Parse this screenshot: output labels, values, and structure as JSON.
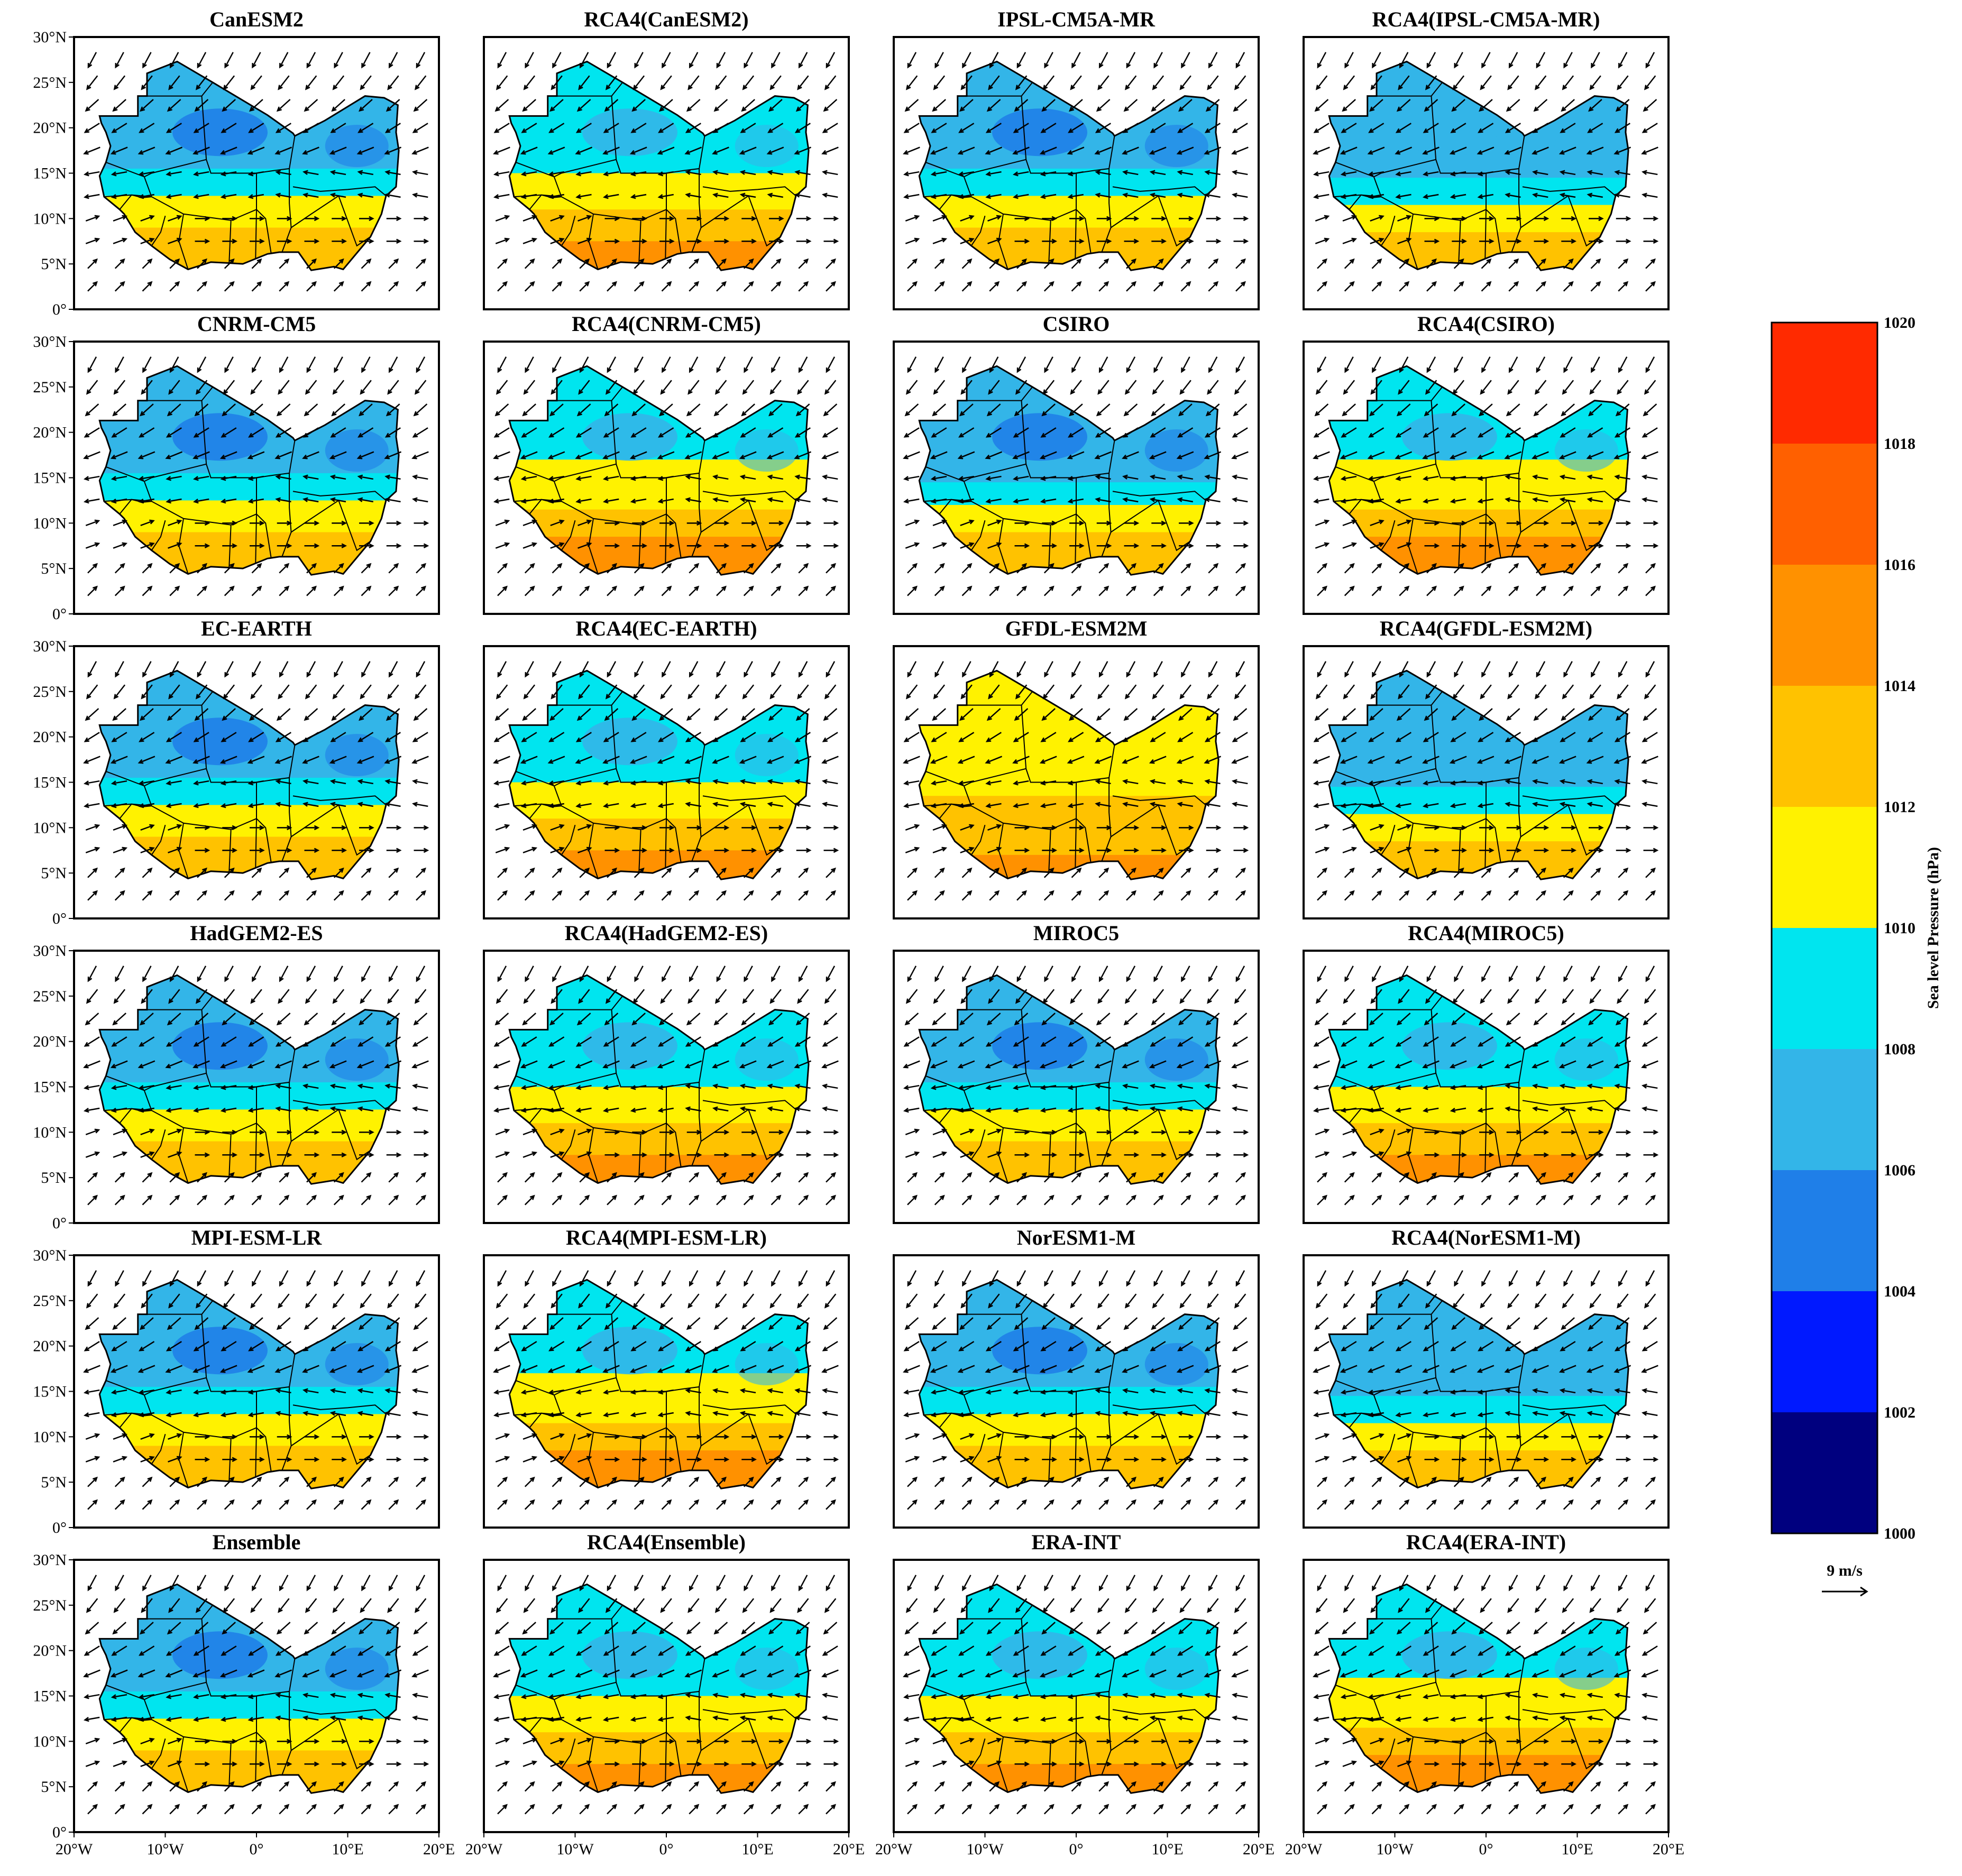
{
  "figure": {
    "type": "map-grid",
    "rows": 6,
    "cols": 4,
    "panels": [
      {
        "title": "CanESM2",
        "pattern": "gcm"
      },
      {
        "title": "RCA4(CanESM2)",
        "pattern": "rca"
      },
      {
        "title": "IPSL-CM5A-MR",
        "pattern": "gcm"
      },
      {
        "title": "RCA4(IPSL-CM5A-MR)",
        "pattern": "rca_low"
      },
      {
        "title": "CNRM-CM5",
        "pattern": "gcm"
      },
      {
        "title": "RCA4(CNRM-CM5)",
        "pattern": "rca_high"
      },
      {
        "title": "CSIRO",
        "pattern": "gcm_low"
      },
      {
        "title": "RCA4(CSIRO)",
        "pattern": "rca_high"
      },
      {
        "title": "EC-EARTH",
        "pattern": "gcm"
      },
      {
        "title": "RCA4(EC-EARTH)",
        "pattern": "rca"
      },
      {
        "title": "GFDL-ESM2M",
        "pattern": "high"
      },
      {
        "title": "RCA4(GFDL-ESM2M)",
        "pattern": "rca_low"
      },
      {
        "title": "HadGEM2-ES",
        "pattern": "gcm"
      },
      {
        "title": "RCA4(HadGEM2-ES)",
        "pattern": "rca"
      },
      {
        "title": "MIROC5",
        "pattern": "gcm"
      },
      {
        "title": "RCA4(MIROC5)",
        "pattern": "rca"
      },
      {
        "title": "MPI-ESM-LR",
        "pattern": "gcm"
      },
      {
        "title": "RCA4(MPI-ESM-LR)",
        "pattern": "rca_high"
      },
      {
        "title": "NorESM1-M",
        "pattern": "gcm"
      },
      {
        "title": "RCA4(NorESM1-M)",
        "pattern": "rca_low"
      },
      {
        "title": "Ensemble",
        "pattern": "gcm"
      },
      {
        "title": "RCA4(Ensemble)",
        "pattern": "rca"
      },
      {
        "title": "ERA-INT",
        "pattern": "rca"
      },
      {
        "title": "RCA4(ERA-INT)",
        "pattern": "rca_high"
      }
    ],
    "lat_ticks": [
      "30°N",
      "25°N",
      "20°N",
      "15°N",
      "10°N",
      "5°N",
      "0°"
    ],
    "lon_ticks": [
      "20°W",
      "10°W",
      "0°",
      "10°E",
      "20°E"
    ],
    "colorbar": {
      "title": "Sea level Pressure (hPa)",
      "levels": [
        1000,
        1002,
        1004,
        1006,
        1008,
        1010,
        1012,
        1014,
        1016,
        1018,
        1020
      ],
      "colors": [
        "#00007f",
        "#0019ff",
        "#1f7fe8",
        "#33b5e8",
        "#00e5ef",
        "#fff200",
        "#ffc200",
        "#ff9100",
        "#ff6000",
        "#ff2a00"
      ]
    },
    "vector_key": "9 m/s"
  }
}
